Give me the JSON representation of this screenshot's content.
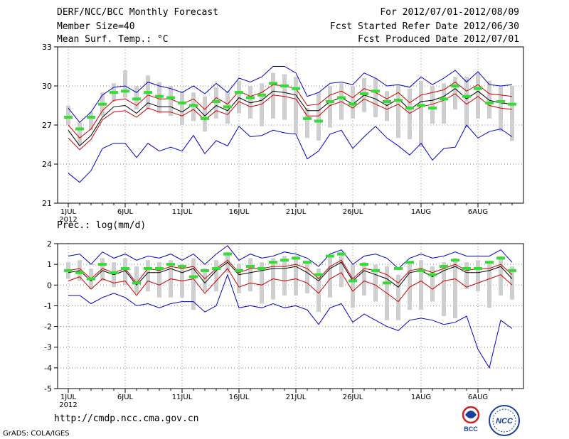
{
  "header": {
    "title": "DERF/NCC/BCC Monthly Forecast",
    "member_size": "Member Size=40",
    "variable": "Mean Surf. Temp.: °C",
    "forecast_range": "For 2012/07/01-2012/08/09",
    "started_date": "Fcst Started Refer Date 2012/06/30",
    "produced_date": "Fcst Produced Date 2012/07/01"
  },
  "footer": {
    "url": "http://cmdp.ncc.cma.gov.cn",
    "credit": "GrADS: COLA/IGES",
    "logo_left": "BCC",
    "logo_right": "NCC"
  },
  "colors": {
    "envelope": "#0000cc",
    "spread": "#cc0000",
    "mean": "#000000",
    "bar": "#cfcfcf",
    "member": "#33dd33",
    "grid": "#888888"
  },
  "chart_data": [
    {
      "type": "line",
      "title": "Mean Surf. Temp.: °C",
      "x": [
        "1JUL",
        "2JUL",
        "3JUL",
        "4JUL",
        "5JUL",
        "6JUL",
        "7JUL",
        "8JUL",
        "9JUL",
        "10JUL",
        "11JUL",
        "12JUL",
        "13JUL",
        "14JUL",
        "15JUL",
        "16JUL",
        "17JUL",
        "18JUL",
        "19JUL",
        "20JUL",
        "21JUL",
        "22JUL",
        "23JUL",
        "24JUL",
        "25JUL",
        "26JUL",
        "27JUL",
        "28JUL",
        "29JUL",
        "30JUL",
        "31JUL",
        "1AUG",
        "2AUG",
        "3AUG",
        "4AUG",
        "5AUG",
        "6AUG",
        "7AUG",
        "8AUG",
        "9AUG"
      ],
      "xtick_labels": [
        "1JUL",
        "6JUL",
        "11JUL",
        "16JUL",
        "21JUL",
        "26JUL",
        "1AUG",
        "6AUG"
      ],
      "xtick_index": [
        0,
        5,
        10,
        15,
        20,
        25,
        31,
        36
      ],
      "year_label": "2012",
      "yticks": [
        21,
        24,
        27,
        30,
        33
      ],
      "ylim": [
        21,
        33
      ],
      "series": [
        {
          "name": "max",
          "values": [
            28.3,
            27.2,
            28.0,
            29.3,
            29.9,
            30.0,
            29.5,
            30.3,
            30.0,
            29.8,
            29.5,
            30.0,
            29.4,
            30.2,
            29.5,
            30.6,
            30.3,
            30.7,
            31.5,
            31.5,
            31.0,
            29.2,
            29.5,
            30.2,
            30.3,
            30.1,
            31.0,
            30.6,
            30.0,
            30.1,
            29.9,
            30.7,
            30.1,
            30.6,
            31.2,
            30.3,
            31.1,
            30.1,
            30.0,
            30.1
          ]
        },
        {
          "name": "upper",
          "values": [
            27.0,
            26.0,
            26.7,
            28.1,
            28.9,
            29.0,
            28.5,
            29.3,
            29.0,
            29.0,
            28.6,
            29.0,
            28.2,
            29.1,
            28.6,
            29.6,
            29.2,
            29.5,
            30.1,
            30.0,
            29.8,
            28.5,
            28.6,
            29.3,
            29.6,
            29.1,
            29.8,
            29.5,
            29.0,
            29.5,
            28.7,
            29.3,
            29.5,
            29.7,
            30.3,
            29.6,
            30.1,
            29.4,
            29.3,
            29.2
          ]
        },
        {
          "name": "mean",
          "values": [
            26.6,
            25.4,
            26.2,
            27.6,
            28.4,
            28.5,
            27.9,
            28.7,
            28.4,
            28.4,
            28.0,
            28.6,
            27.7,
            28.5,
            28.1,
            29.1,
            28.7,
            28.9,
            29.6,
            29.5,
            29.3,
            28.1,
            28.1,
            28.8,
            29.1,
            28.6,
            29.3,
            29.0,
            28.5,
            29.0,
            28.2,
            28.8,
            28.9,
            29.2,
            29.8,
            29.0,
            29.6,
            28.9,
            28.7,
            28.6
          ]
        },
        {
          "name": "lower",
          "values": [
            26.0,
            25.1,
            25.9,
            27.4,
            28.0,
            28.1,
            27.6,
            28.3,
            28.0,
            28.0,
            27.7,
            28.2,
            27.4,
            28.1,
            27.8,
            28.8,
            28.4,
            28.6,
            29.3,
            29.2,
            29.0,
            27.7,
            27.7,
            28.5,
            28.8,
            28.3,
            29.0,
            28.6,
            28.2,
            28.6,
            27.9,
            28.4,
            28.6,
            28.9,
            29.4,
            28.6,
            29.2,
            28.5,
            28.3,
            28.2
          ]
        },
        {
          "name": "min",
          "values": [
            23.3,
            22.6,
            23.5,
            25.2,
            25.6,
            25.6,
            24.5,
            25.6,
            25.0,
            25.3,
            25.0,
            26.2,
            24.8,
            25.8,
            25.4,
            26.9,
            26.1,
            26.2,
            26.6,
            26.4,
            26.3,
            24.4,
            25.0,
            26.3,
            26.6,
            25.2,
            26.1,
            26.9,
            26.0,
            25.4,
            24.7,
            25.6,
            24.3,
            25.2,
            25.3,
            27.0,
            26.0,
            26.5,
            26.7,
            26.1
          ]
        },
        {
          "name": "bar_high",
          "values": [
            28.5,
            27.2,
            28.0,
            29.5,
            30.2,
            31.2,
            30.0,
            30.8,
            30.3,
            30.0,
            29.6,
            29.5,
            29.2,
            29.9,
            29.6,
            30.4,
            30.0,
            30.2,
            31.0,
            30.9,
            30.7,
            28.3,
            29.5,
            30.0,
            30.2,
            30.0,
            30.6,
            30.6,
            29.6,
            30.1,
            29.8,
            30.4,
            30.0,
            30.2,
            30.7,
            30.7,
            31.0,
            30.4,
            30.0,
            30.0
          ]
        },
        {
          "name": "bar_low",
          "values": [
            27.0,
            25.5,
            26.6,
            27.7,
            28.8,
            29.1,
            28.2,
            28.2,
            27.9,
            27.7,
            27.0,
            27.3,
            26.5,
            27.5,
            27.1,
            27.9,
            27.5,
            26.9,
            27.5,
            27.4,
            26.3,
            26.0,
            25.8,
            26.8,
            27.4,
            27.5,
            28.0,
            27.6,
            27.3,
            26.0,
            25.9,
            25.3,
            27.1,
            27.1,
            28.2,
            26.8,
            27.5,
            27.5,
            26.5,
            25.8
          ]
        },
        {
          "name": "member",
          "values": [
            27.6,
            26.7,
            27.6,
            28.6,
            29.5,
            29.6,
            29.0,
            29.5,
            29.2,
            29.1,
            28.7,
            28.5,
            27.5,
            28.8,
            28.4,
            29.5,
            29.1,
            29.3,
            30.2,
            30.0,
            29.8,
            27.5,
            27.3,
            28.8,
            29.1,
            28.6,
            29.4,
            29.6,
            28.8,
            28.9,
            28.3,
            28.5,
            28.3,
            29.0,
            30.0,
            29.2,
            29.8,
            28.7,
            28.8,
            28.6
          ]
        }
      ]
    },
    {
      "type": "line",
      "title": "Prec.: log(mm/d)",
      "x": [
        "1JUL",
        "2JUL",
        "3JUL",
        "4JUL",
        "5JUL",
        "6JUL",
        "7JUL",
        "8JUL",
        "9JUL",
        "10JUL",
        "11JUL",
        "12JUL",
        "13JUL",
        "14JUL",
        "15JUL",
        "16JUL",
        "17JUL",
        "18JUL",
        "19JUL",
        "20JUL",
        "21JUL",
        "22JUL",
        "23JUL",
        "24JUL",
        "25JUL",
        "26JUL",
        "27JUL",
        "28JUL",
        "29JUL",
        "30JUL",
        "31JUL",
        "1AUG",
        "2AUG",
        "3AUG",
        "4AUG",
        "5AUG",
        "6AUG",
        "7AUG",
        "8AUG",
        "9AUG"
      ],
      "xtick_labels": [
        "1JUL",
        "6JUL",
        "11JUL",
        "16JUL",
        "21JUL",
        "26JUL",
        "1AUG",
        "6AUG"
      ],
      "xtick_index": [
        0,
        5,
        10,
        15,
        20,
        25,
        31,
        36
      ],
      "year_label": "2012",
      "yticks": [
        -5,
        -4,
        -3,
        -2,
        -1,
        0,
        1,
        2
      ],
      "ylim": [
        -5,
        2
      ],
      "series": [
        {
          "name": "max",
          "values": [
            1.4,
            1.5,
            1.0,
            1.6,
            1.3,
            1.5,
            1.2,
            1.4,
            1.3,
            1.5,
            1.2,
            1.5,
            1.0,
            1.5,
            1.9,
            1.2,
            1.5,
            1.3,
            1.4,
            1.6,
            1.5,
            1.3,
            0.9,
            1.5,
            1.7,
            1.0,
            1.4,
            1.5,
            1.3,
            0.8,
            1.3,
            1.5,
            1.3,
            1.4,
            1.6,
            1.4,
            1.4,
            1.4,
            1.7,
            1.1
          ]
        },
        {
          "name": "upper",
          "values": [
            0.7,
            0.8,
            0.3,
            0.8,
            0.6,
            0.8,
            0.1,
            0.8,
            0.7,
            0.9,
            0.8,
            0.9,
            0.3,
            0.8,
            1.2,
            0.6,
            0.8,
            0.8,
            0.9,
            0.9,
            1.0,
            0.8,
            0.3,
            0.9,
            1.2,
            0.3,
            0.8,
            0.7,
            0.5,
            0.1,
            0.7,
            0.8,
            0.6,
            0.8,
            1.0,
            0.7,
            0.8,
            0.8,
            1.0,
            0.5
          ]
        },
        {
          "name": "mean",
          "values": [
            0.6,
            0.7,
            0.2,
            0.7,
            0.5,
            0.7,
            0.0,
            0.6,
            0.6,
            0.8,
            0.6,
            0.8,
            0.1,
            0.7,
            1.1,
            0.5,
            0.6,
            0.7,
            0.8,
            0.8,
            0.9,
            0.6,
            0.2,
            0.8,
            1.1,
            0.2,
            0.7,
            0.5,
            0.3,
            -0.1,
            0.6,
            0.7,
            0.4,
            0.7,
            0.9,
            0.6,
            0.6,
            0.7,
            0.9,
            0.3
          ]
        },
        {
          "name": "lower",
          "values": [
            0.2,
            0.4,
            -0.2,
            0.3,
            0.1,
            0.2,
            -0.5,
            0.2,
            0.0,
            0.3,
            0.2,
            0.3,
            -0.4,
            0.2,
            0.8,
            -0.1,
            0.1,
            0.0,
            0.3,
            0.2,
            0.3,
            0.1,
            -0.4,
            0.3,
            0.6,
            -0.3,
            0.2,
            0.0,
            -0.4,
            -0.8,
            -0.1,
            0.2,
            -0.2,
            0.2,
            0.3,
            -0.1,
            0.1,
            0.3,
            0.5,
            0.0
          ]
        },
        {
          "name": "min",
          "values": [
            -0.5,
            -0.5,
            -0.9,
            -0.6,
            -0.4,
            -0.6,
            -1.0,
            -0.9,
            -1.1,
            -0.9,
            -0.8,
            -0.8,
            -1.3,
            -1.0,
            0.5,
            -1.1,
            -1.0,
            -1.1,
            -0.9,
            -1.1,
            -1.0,
            -1.2,
            -1.9,
            -1.1,
            -0.9,
            -1.8,
            -1.4,
            -1.7,
            -2.0,
            -2.2,
            -1.7,
            -1.6,
            -1.7,
            -1.9,
            -1.8,
            -1.5,
            -3.1,
            -4.0,
            -1.7,
            -2.1
          ]
        },
        {
          "name": "bar_high",
          "values": [
            1.1,
            1.2,
            0.8,
            1.3,
            1.1,
            1.3,
            0.9,
            1.2,
            1.1,
            1.2,
            1.0,
            1.3,
            0.8,
            1.2,
            1.6,
            1.0,
            1.3,
            1.1,
            1.3,
            1.4,
            1.4,
            1.1,
            0.8,
            1.4,
            1.6,
            1.0,
            1.1,
            1.0,
            0.9,
            0.5,
            1.1,
            1.2,
            0.9,
            1.1,
            1.3,
            1.1,
            1.2,
            1.1,
            1.4,
            0.9
          ]
        },
        {
          "name": "bar_low",
          "values": [
            0.3,
            0.2,
            -0.2,
            0.2,
            -0.1,
            0.0,
            -0.4,
            -0.3,
            -0.6,
            -0.6,
            -0.6,
            -1.2,
            -0.3,
            -0.3,
            0.6,
            -0.4,
            -0.3,
            -0.9,
            -0.7,
            -0.5,
            -0.5,
            -0.4,
            -1.3,
            -0.6,
            -0.1,
            -1.1,
            -0.5,
            -0.8,
            -1.7,
            -1.7,
            -1.2,
            -1.2,
            -0.8,
            -1.5,
            -1.6,
            -0.2,
            -0.3,
            -1.1,
            -0.5,
            -0.7
          ]
        },
        {
          "name": "member",
          "values": [
            0.7,
            0.6,
            0.3,
            1.0,
            0.6,
            0.8,
            0.1,
            0.8,
            0.8,
            1.0,
            0.9,
            0.4,
            0.7,
            0.8,
            1.5,
            0.7,
            0.9,
            0.8,
            1.1,
            1.2,
            1.3,
            1.1,
            0.5,
            1.4,
            1.5,
            0.2,
            1.0,
            0.7,
            0.1,
            0.8,
            1.1,
            0.7,
            0.5,
            0.9,
            1.2,
            0.8,
            0.8,
            1.1,
            1.3,
            0.7
          ]
        }
      ]
    }
  ]
}
